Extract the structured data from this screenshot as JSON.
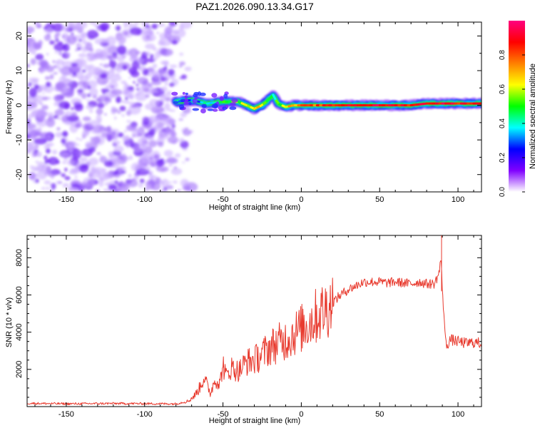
{
  "title": "PAZ1.2026.090.13.34.G17",
  "chart_data": [
    {
      "type": "heatmap",
      "title": "PAZ1.2026.090.13.34.G17",
      "xlabel": "Height of straight line (km)",
      "ylabel": "Frequency (Hz)",
      "xlim": [
        -175,
        115
      ],
      "ylim": [
        -25,
        24
      ],
      "xticks": [
        -150,
        -100,
        -50,
        0,
        50,
        100
      ],
      "xtick_labels": [
        "-150",
        "-100",
        "-50",
        "0",
        "50",
        "100"
      ],
      "yticks": [
        -20,
        -10,
        0,
        10,
        20
      ],
      "ytick_labels": [
        "-20",
        "-10",
        "0",
        "10",
        "20"
      ],
      "colorbar": {
        "label": "Normalized spectral amplitude",
        "range": [
          0,
          1
        ],
        "ticks": [
          0.0,
          0.2,
          0.4,
          0.6,
          0.8
        ],
        "tick_labels": [
          "0.0",
          "0.2",
          "0.4",
          "0.6",
          "0.8"
        ],
        "colors": [
          "#ffffff",
          "#8000ff",
          "#0000ff",
          "#00ffff",
          "#00ff00",
          "#ffff00",
          "#ff8000",
          "#ff0000",
          "#ff0080"
        ]
      },
      "noise_region_x": [
        -175,
        -80
      ],
      "ridge": {
        "x": [
          -80,
          -70,
          -60,
          -50,
          -40,
          -30,
          -25,
          -20,
          -18,
          -15,
          -10,
          -5,
          0,
          10,
          20,
          30,
          40,
          50,
          60,
          70,
          80,
          90,
          100,
          110,
          115
        ],
        "y": [
          1.0,
          1.5,
          0.5,
          1.0,
          1.0,
          -1.0,
          0.0,
          2.0,
          3.0,
          0.5,
          -0.5,
          0.0,
          0.0,
          0.0,
          0.0,
          0.0,
          0.0,
          0.0,
          0.0,
          0.0,
          0.5,
          0.5,
          0.5,
          0.5,
          0.5
        ],
        "amplitude": [
          0.35,
          0.3,
          0.4,
          0.5,
          0.55,
          0.7,
          0.6,
          0.5,
          0.45,
          0.5,
          0.65,
          0.7,
          0.75,
          0.8,
          0.85,
          0.9,
          0.9,
          0.9,
          0.88,
          0.88,
          0.9,
          0.9,
          0.88,
          0.88,
          0.85
        ]
      }
    },
    {
      "type": "line",
      "xlabel": "Height of straight line (km)",
      "ylabel": "SNR (10 * v/v)",
      "xlim": [
        -175,
        115
      ],
      "ylim": [
        0,
        9200
      ],
      "xticks": [
        -150,
        -100,
        -50,
        0,
        50,
        100
      ],
      "xtick_labels": [
        "-150",
        "-100",
        "-50",
        "0",
        "50",
        "100"
      ],
      "yticks": [
        2000,
        4000,
        6000,
        8000
      ],
      "ytick_labels": [
        "2000",
        "4000",
        "6000",
        "8000"
      ],
      "series": [
        {
          "name": "SNR",
          "color": "#e83a2e",
          "x": [
            -175,
            -150,
            -120,
            -100,
            -80,
            -72,
            -68,
            -65,
            -62,
            -60,
            -58,
            -55,
            -52,
            -50,
            -48,
            -45,
            -42,
            -40,
            -35,
            -30,
            -25,
            -20,
            -15,
            -10,
            -5,
            0,
            5,
            10,
            15,
            20,
            25,
            30,
            35,
            40,
            45,
            50,
            55,
            60,
            65,
            70,
            75,
            80,
            85,
            88,
            89,
            90,
            91,
            92,
            93,
            95,
            100,
            105,
            110,
            115
          ],
          "y": [
            180,
            150,
            170,
            160,
            150,
            300,
            600,
            1000,
            1600,
            1100,
            700,
            1500,
            1200,
            2300,
            1600,
            2100,
            2000,
            1900,
            2400,
            2500,
            2800,
            3200,
            3400,
            3600,
            3900,
            4200,
            4500,
            4900,
            5200,
            5600,
            6000,
            6300,
            6500,
            6700,
            6700,
            6700,
            6650,
            6700,
            6650,
            6600,
            6700,
            6600,
            6600,
            7200,
            8000,
            6400,
            5000,
            3500,
            3300,
            3600,
            3500,
            3400,
            3450,
            3400
          ]
        }
      ]
    }
  ]
}
